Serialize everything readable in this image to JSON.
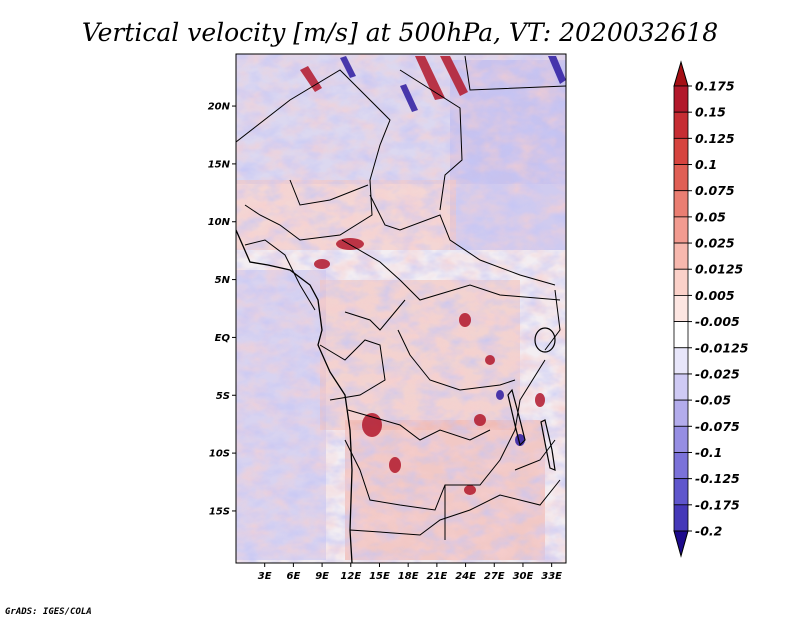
{
  "title": "Vertical velocity [m/s] at 500hPa, VT: 2020032618",
  "credit": "GrADS: IGES/COLA",
  "map": {
    "lon_range": [
      0,
      34.5
    ],
    "lat_range": [
      -19.5,
      24.5
    ],
    "lon_ticks": [
      {
        "value": 3,
        "label": "3E"
      },
      {
        "value": 6,
        "label": "6E"
      },
      {
        "value": 9,
        "label": "9E"
      },
      {
        "value": 12,
        "label": "12E"
      },
      {
        "value": 15,
        "label": "15E"
      },
      {
        "value": 18,
        "label": "18E"
      },
      {
        "value": 21,
        "label": "21E"
      },
      {
        "value": 24,
        "label": "24E"
      },
      {
        "value": 27,
        "label": "27E"
      },
      {
        "value": 30,
        "label": "30E"
      },
      {
        "value": 33,
        "label": "33E"
      }
    ],
    "lat_ticks": [
      {
        "value": 20,
        "label": "20N"
      },
      {
        "value": 15,
        "label": "15N"
      },
      {
        "value": 10,
        "label": "10N"
      },
      {
        "value": 5,
        "label": "5N"
      },
      {
        "value": 0,
        "label": "EQ"
      },
      {
        "value": -5,
        "label": "5S"
      },
      {
        "value": -10,
        "label": "10S"
      },
      {
        "value": -15,
        "label": "15S"
      }
    ]
  },
  "colorbar": {
    "entries": [
      {
        "label": "0.175",
        "color": "#b2182b"
      },
      {
        "label": "0.15",
        "color": "#c62d33"
      },
      {
        "label": "0.125",
        "color": "#d6443f"
      },
      {
        "label": "0.1",
        "color": "#e05f55"
      },
      {
        "label": "0.075",
        "color": "#ea7e72"
      },
      {
        "label": "0.05",
        "color": "#f29b90"
      },
      {
        "label": "0.025",
        "color": "#f7b8ae"
      },
      {
        "label": "0.0125",
        "color": "#fbd1c9"
      },
      {
        "label": "0.005",
        "color": "#fde6e2"
      },
      {
        "label": "-0.005",
        "color": "#ffffff"
      },
      {
        "label": "-0.0125",
        "color": "#e8e6fa"
      },
      {
        "label": "-0.025",
        "color": "#cfcaf4"
      },
      {
        "label": "-0.05",
        "color": "#b3acec"
      },
      {
        "label": "-0.075",
        "color": "#968ee3"
      },
      {
        "label": "-0.1",
        "color": "#7b72d9"
      },
      {
        "label": "-0.125",
        "color": "#5f56cc"
      },
      {
        "label": "-0.175",
        "color": "#4538b8"
      },
      {
        "label": "-0.2",
        "color": "#2d1ba0"
      }
    ],
    "top_color": "#a50f15",
    "bottom_color": "#1d0a8c"
  }
}
